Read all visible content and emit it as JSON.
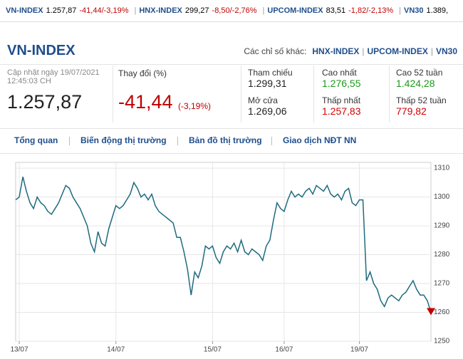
{
  "ticker": [
    {
      "name": "VN-INDEX",
      "value": "1.257,87",
      "change": "-41,44/-3,19%"
    },
    {
      "name": "HNX-INDEX",
      "value": "299,27",
      "change": "-8,50/-2,76%"
    },
    {
      "name": "UPCOM-INDEX",
      "value": "83,51",
      "change": "-1,82/-2,13%"
    },
    {
      "name": "VN30",
      "value": "1.389,"
    }
  ],
  "header": {
    "title": "VN-INDEX",
    "other_label": "Các chỉ số khác:",
    "others": [
      "HNX-INDEX",
      "UPCOM-INDEX",
      "VN30"
    ]
  },
  "summary": {
    "updated_label": "Cập nhật ngày 19/07/2021",
    "updated_time": "12:45:03 CH",
    "price": "1.257,87",
    "change_label": "Thay đổi (%)",
    "change": "-41,44",
    "change_pct": "(-3,19%)"
  },
  "stats": [
    {
      "label": "Tham chiếu",
      "value": "1.299,31",
      "color": "#222222"
    },
    {
      "label": "Cao nhất",
      "value": "1.276,55",
      "color": "#1a9a1a"
    },
    {
      "label": "Cao 52 tuần",
      "value": "1.424,28",
      "color": "#1a9a1a"
    },
    {
      "label": "Mở cửa",
      "value": "1.269,06",
      "color": "#222222"
    },
    {
      "label": "Thấp nhất",
      "value": "1.257,83",
      "color": "#d00000"
    },
    {
      "label": "Thấp 52 tuần",
      "value": "779,82",
      "color": "#d00000"
    }
  ],
  "tabs": [
    "Tổng quan",
    "Biến động thị trường",
    "Bản đồ thị trường",
    "Giao dịch NĐT NN"
  ],
  "chart_data": {
    "type": "line",
    "color": "#1d6b7e",
    "grid": true,
    "ylim": [
      1250,
      1312
    ],
    "yticks": [
      1250,
      1260,
      1270,
      1280,
      1290,
      1300,
      1310
    ],
    "xlim": [
      0,
      116
    ],
    "xticks": [
      {
        "value": 1,
        "label": "13/07"
      },
      {
        "value": 28,
        "label": "14/07"
      },
      {
        "value": 55,
        "label": "15/07"
      },
      {
        "value": 75,
        "label": "16/07"
      },
      {
        "value": 96,
        "label": "19/07"
      }
    ],
    "values": [
      1299,
      1300,
      1307,
      1302,
      1298,
      1296,
      1300,
      1298,
      1297,
      1295,
      1294,
      1296,
      1298,
      1301,
      1304,
      1303,
      1300,
      1298,
      1296,
      1293,
      1290,
      1284,
      1281,
      1288,
      1284,
      1283,
      1289,
      1293,
      1297,
      1296,
      1297,
      1299,
      1301,
      1305,
      1303,
      1300,
      1301,
      1299,
      1301,
      1297,
      1295,
      1294,
      1293,
      1292,
      1291,
      1286,
      1286,
      1281,
      1275,
      1266,
      1274,
      1272,
      1276,
      1283,
      1282,
      1283,
      1279,
      1277,
      1281,
      1283,
      1282,
      1284,
      1281,
      1285,
      1281,
      1280,
      1282,
      1281,
      1280,
      1278,
      1283,
      1285,
      1292,
      1298,
      1296,
      1295,
      1299,
      1302,
      1300,
      1301,
      1300,
      1302,
      1303,
      1301,
      1304,
      1303,
      1302,
      1304,
      1301,
      1300,
      1301,
      1299,
      1302,
      1303,
      1298,
      1297,
      1299,
      1299,
      1271,
      1274,
      1270,
      1268,
      1264,
      1262,
      1265,
      1266,
      1265,
      1264,
      1266,
      1267,
      1269,
      1271,
      1268,
      1266,
      1266,
      1264,
      1260
    ]
  }
}
